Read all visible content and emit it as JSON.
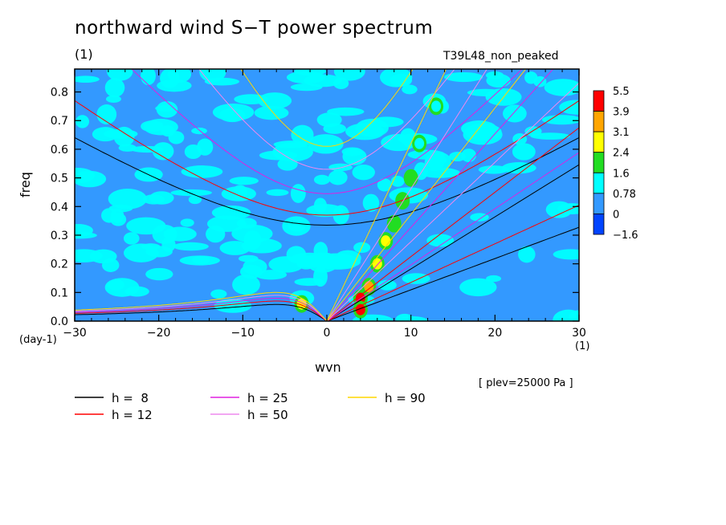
{
  "header": {
    "title": "northward wind S−T power spectrum",
    "unit_top": "(1)",
    "run_label": "T39L48_non_peaked"
  },
  "axes": {
    "xlabel": "wvn",
    "ylabel": "freq",
    "x_unit": "(1)",
    "y_unit": "(day-1)",
    "plev": "[ plev=25000 Pa ]"
  },
  "colors": {
    "background_field": "#3399ff",
    "light_field": "#00ffff"
  },
  "chart_data": {
    "type": "heatmap",
    "title": "northward wind S−T power spectrum",
    "xlabel": "wvn",
    "ylabel": "freq",
    "xlim": [
      -30,
      30
    ],
    "ylim": [
      0,
      0.88
    ],
    "x_ticks": [
      -30,
      -20,
      -10,
      0,
      10,
      20,
      30
    ],
    "x_tick_labels": [
      "−30",
      "−20",
      "−10",
      "0",
      "10",
      "20",
      "30"
    ],
    "y_ticks": [
      0,
      0.1,
      0.2,
      0.3,
      0.4,
      0.5,
      0.6,
      0.7,
      0.8
    ],
    "y_tick_labels": [
      "0.0",
      "0.1",
      "0.2",
      "0.3",
      "0.4",
      "0.5",
      "0.6",
      "0.7",
      "0.8"
    ],
    "colorbar": {
      "levels": [
        "5.5",
        "3.9",
        "3.1",
        "2.4",
        "1.6",
        "0.78",
        "0",
        "−1.6"
      ],
      "colors": [
        "#ff0000",
        "#ffa500",
        "#ffff00",
        "#22dd22",
        "#00ffff",
        "#3399ff",
        "#0044ff"
      ]
    },
    "series": [
      {
        "name": "h =  8",
        "h": 8,
        "color": "#000000"
      },
      {
        "name": "h = 12",
        "h": 12,
        "color": "#ff0000"
      },
      {
        "name": "h = 25",
        "h": 25,
        "color": "#e020e0"
      },
      {
        "name": "h = 50",
        "h": 50,
        "color": "#ee88ee"
      },
      {
        "name": "h = 90",
        "h": 90,
        "color": "#ffd700"
      }
    ],
    "inertia_gravity_minimum_freq": [
      0.335,
      0.37,
      0.445,
      0.53,
      0.61
    ],
    "rossby_low_freq_max": [
      0.058,
      0.07,
      0.08,
      0.09,
      0.1
    ],
    "kelvin_slope": [
      0.0182,
      0.0225,
      0.0327,
      0.0462,
      0.062
    ],
    "mrg_slope_at_high_k": [
      0.0185,
      0.0225,
      0.0327,
      0.0462,
      0.062
    ],
    "spectral_peaks": [
      {
        "x": 4,
        "y": 0.08,
        "value": "5.5"
      },
      {
        "x": 4,
        "y": 0.04,
        "value": "5.5"
      },
      {
        "x": 5,
        "y": 0.12,
        "value": "3.9"
      },
      {
        "x": 6,
        "y": 0.2,
        "value": "3.1"
      },
      {
        "x": 7,
        "y": 0.28,
        "value": "3.1"
      },
      {
        "x": 8,
        "y": 0.34,
        "value": "2.4"
      },
      {
        "x": 9,
        "y": 0.42,
        "value": "2.4"
      },
      {
        "x": 10,
        "y": 0.5,
        "value": "2.4"
      },
      {
        "x": 11,
        "y": 0.62,
        "value": "1.6"
      },
      {
        "x": 13,
        "y": 0.75,
        "value": "1.6"
      },
      {
        "x": -3,
        "y": 0.06,
        "value": "3.1"
      }
    ]
  }
}
